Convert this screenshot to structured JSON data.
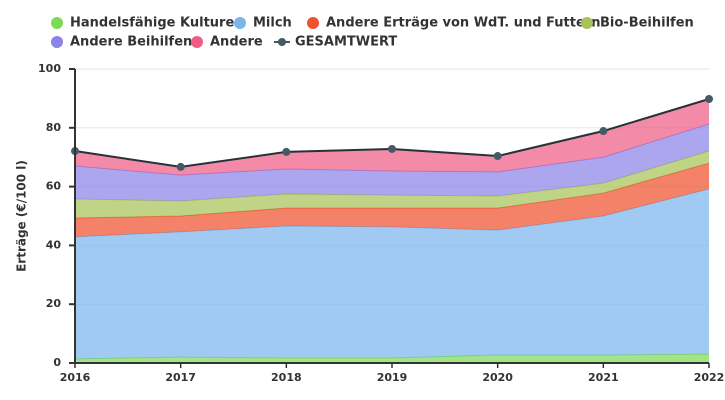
{
  "chart_data": {
    "type": "area",
    "y_label": "Erträge (€/100 l)",
    "x": [
      2016,
      2017,
      2018,
      2019,
      2020,
      2021,
      2022
    ],
    "xlim": [
      2016,
      2022
    ],
    "xticks": [
      2016,
      2017,
      2018,
      2019,
      2020,
      2021,
      2022
    ],
    "ylim": [
      0,
      100
    ],
    "yticks": [
      0,
      20,
      40,
      60,
      80,
      100
    ],
    "grid": true,
    "stacked": true,
    "series": [
      {
        "name": "Handelsfähige Kulturen",
        "color": "#7ed957",
        "values": [
          1.4,
          2,
          1.7,
          1.7,
          2.7,
          2.7,
          3
        ]
      },
      {
        "name": "Milch",
        "color": "#7cb5ec",
        "values": [
          41.5,
          42.6,
          44.9,
          44.6,
          42.5,
          47.3,
          56.2
        ]
      },
      {
        "name": "Andere Erträge von WdT. und Futtern",
        "color": "#f0522f",
        "values": [
          6.4,
          5.4,
          6.1,
          6.4,
          7.5,
          7.8,
          8.8
        ]
      },
      {
        "name": "Bio-Beihilfen",
        "color": "#a8c35a",
        "values": [
          6.5,
          5.1,
          4.8,
          4.4,
          4.1,
          3.4,
          4.1
        ]
      },
      {
        "name": "Andere Beihilfen",
        "color": "#8a83e8",
        "values": [
          11.2,
          8.8,
          8.5,
          8.2,
          8.2,
          8.8,
          9.2
        ]
      },
      {
        "name": "Andere",
        "color": "#ef5d86",
        "values": [
          5.1,
          2.8,
          5.8,
          7.5,
          5.4,
          8.9,
          8.5
        ]
      },
      {
        "name": "GESAMTWERT",
        "color": "#455a64",
        "type": "line",
        "values": [
          72.1,
          66.7,
          71.8,
          72.8,
          70.4,
          78.9,
          89.8
        ]
      }
    ]
  }
}
